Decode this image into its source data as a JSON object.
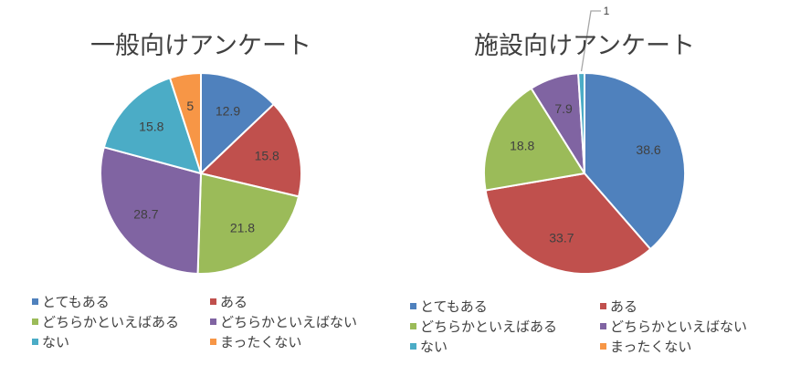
{
  "chart_data": [
    {
      "type": "pie",
      "title": "一般向けアンケート",
      "categories": [
        "とてもある",
        "ある",
        "どちらかといえばある",
        "どちらかといえばない",
        "ない",
        "まったくない"
      ],
      "values": [
        12.9,
        15.8,
        21.8,
        28.7,
        15.8,
        5
      ],
      "legend": "bottom"
    },
    {
      "type": "pie",
      "title": "施設向けアンケート",
      "categories": [
        "とてもある",
        "ある",
        "どちらかといえばある",
        "どちらかといえばない",
        "ない",
        "まったくない"
      ],
      "values": [
        38.6,
        33.7,
        18.8,
        7.9,
        1,
        0
      ],
      "legend": "bottom"
    }
  ],
  "colors": [
    "#4F81BD",
    "#C0504D",
    "#9BBB59",
    "#8064A2",
    "#4BACC6",
    "#F79646"
  ]
}
